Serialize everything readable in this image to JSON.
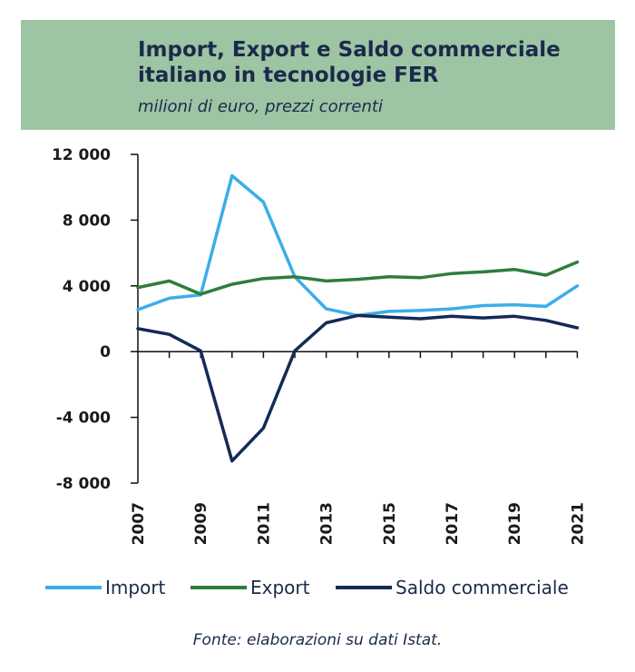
{
  "chart_data": {
    "type": "line",
    "title": "Import, Export e Saldo commerciale italiano in tecnologie FER",
    "subtitle": "milioni di euro, prezzi correnti",
    "x": [
      2007,
      2008,
      2009,
      2010,
      2011,
      2012,
      2013,
      2014,
      2015,
      2016,
      2017,
      2018,
      2019,
      2020,
      2021
    ],
    "x_tick_labels": [
      "2007",
      "2009",
      "2011",
      "2013",
      "2015",
      "2017",
      "2019",
      "2021"
    ],
    "y_ticks": [
      12000,
      8000,
      4000,
      0,
      -4000,
      -8000
    ],
    "y_tick_labels": [
      "12 000",
      "8 000",
      "4 000",
      "0",
      "-4 000",
      "-8 000"
    ],
    "ylim": [
      -8000,
      12000
    ],
    "grid": false,
    "legend_position": "bottom",
    "series": [
      {
        "name": "Import",
        "color": "#3aaee9",
        "values": [
          2550,
          3250,
          3450,
          10700,
          9100,
          4550,
          2600,
          2200,
          2450,
          2500,
          2600,
          2800,
          2850,
          2750,
          4000
        ]
      },
      {
        "name": "Export",
        "color": "#2e7d3e",
        "values": [
          3900,
          4300,
          3500,
          4100,
          4450,
          4550,
          4300,
          4400,
          4550,
          4500,
          4750,
          4850,
          5000,
          4650,
          5450
        ]
      },
      {
        "name": "Saldo commerciale",
        "color": "#142a57",
        "values": [
          1400,
          1050,
          50,
          -6650,
          -4650,
          50,
          1750,
          2200,
          2100,
          2000,
          2150,
          2050,
          2150,
          1900,
          1450
        ]
      }
    ],
    "source": "Fonte: elaborazioni su dati Istat."
  }
}
